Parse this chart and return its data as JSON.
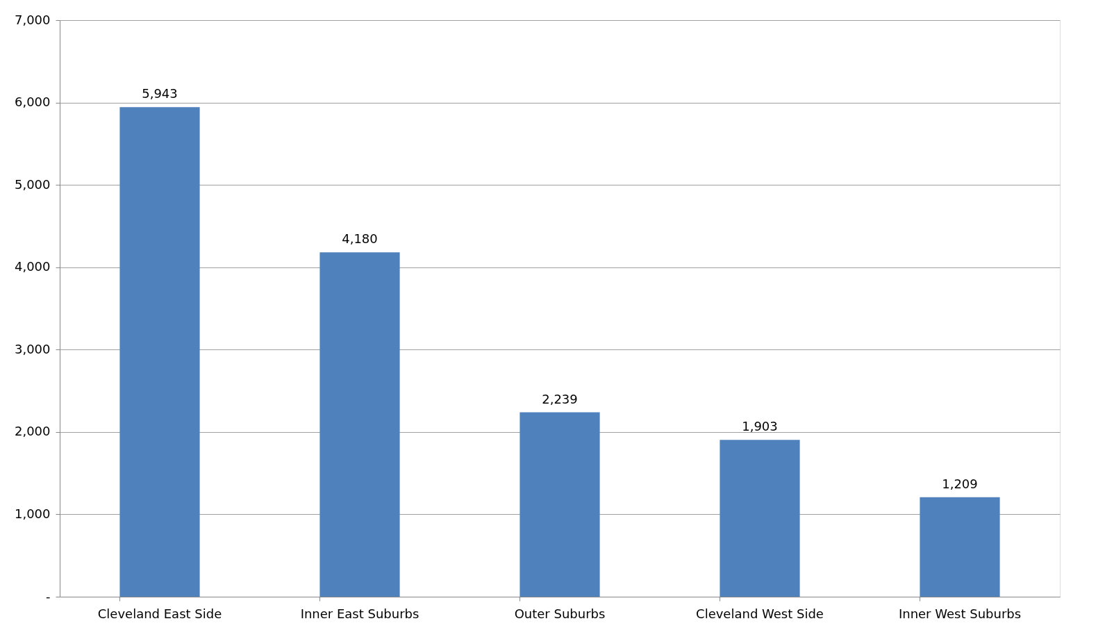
{
  "chart_data": {
    "type": "bar",
    "categories": [
      "Cleveland East Side",
      "Inner East  Suburbs",
      "Outer Suburbs",
      "Cleveland West Side",
      "Inner West Suburbs"
    ],
    "values": [
      5943,
      4180,
      2239,
      1903,
      1209
    ],
    "color": "#4f81bd",
    "ylim": [
      0,
      7000
    ],
    "yticks": [
      {
        "value": 0,
        "label": "-"
      },
      {
        "value": 1000,
        "label": "1,000"
      },
      {
        "value": 2000,
        "label": "2,000"
      },
      {
        "value": 3000,
        "label": "3,000"
      },
      {
        "value": 4000,
        "label": "4,000"
      },
      {
        "value": 5000,
        "label": "5,000"
      },
      {
        "value": 6000,
        "label": "6,000"
      },
      {
        "value": 7000,
        "label": "7,000"
      }
    ],
    "grid": "y",
    "value_labels": [
      "5,943",
      "4,180",
      "2,239",
      "1,903",
      "1,209"
    ]
  }
}
